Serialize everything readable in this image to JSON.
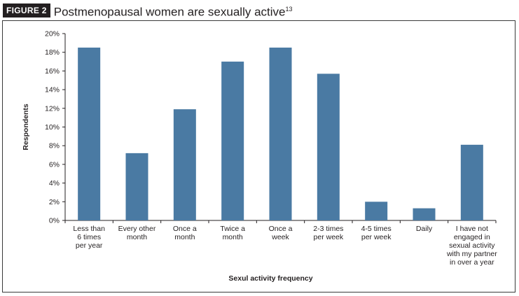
{
  "figure": {
    "label": "FIGURE 2",
    "title": "Postmenopausal women are sexually active",
    "reference": "13"
  },
  "chart_data": {
    "type": "bar",
    "xlabel": "Sexul activity frequency",
    "ylabel": "Respondents",
    "ylim": [
      0,
      20
    ],
    "y_ticks": [
      "0%",
      "2%",
      "4%",
      "6%",
      "8%",
      "10%",
      "12%",
      "14%",
      "16%",
      "18%",
      "20%"
    ],
    "grid": false,
    "bar_color": "#4a7aa3",
    "categories": [
      [
        "Less than",
        "6 times",
        "per year"
      ],
      [
        "Every other",
        "month"
      ],
      [
        "Once a",
        "month"
      ],
      [
        "Twice a",
        "month"
      ],
      [
        "Once a",
        "week"
      ],
      [
        "2-3 times",
        "per week"
      ],
      [
        "4-5 times",
        "per week"
      ],
      [
        "Daily"
      ],
      [
        "I have not",
        "engaged in",
        "sexual activity",
        "with my partner",
        "in over a year"
      ]
    ],
    "values": [
      18.5,
      7.2,
      11.9,
      17.0,
      18.5,
      15.7,
      2.0,
      1.3,
      8.1
    ]
  }
}
